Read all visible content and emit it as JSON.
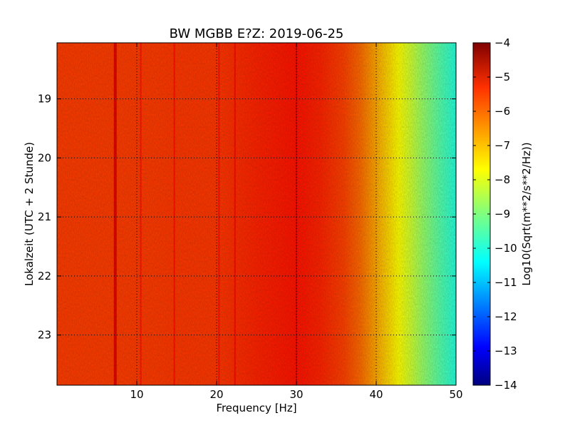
{
  "chart_data": {
    "type": "heatmap",
    "title": "BW MGBB E?Z: 2019-06-25",
    "xlabel": "Frequency [Hz]",
    "ylabel": "Lokalzeit (UTC + 2 Stunde)",
    "xlim": [
      0,
      50
    ],
    "ylim": [
      18.05,
      23.85
    ],
    "y_inverted": true,
    "x_ticks": [
      10,
      20,
      30,
      40,
      50
    ],
    "x_tick_labels": [
      "10",
      "20",
      "30",
      "40",
      "50"
    ],
    "y_ticks": [
      19,
      20,
      21,
      22,
      23
    ],
    "y_tick_labels": [
      "19",
      "20",
      "21",
      "22",
      "23"
    ],
    "grid": true,
    "colormap": "jet",
    "colorbar": {
      "label": "Log10(Sqrt(m**2/s**2/Hz))",
      "range": [
        -14,
        -4
      ],
      "ticks": [
        -4,
        -5,
        -6,
        -7,
        -8,
        -9,
        -10,
        -11,
        -12,
        -13,
        -14
      ],
      "tick_labels": [
        "−4",
        "−5",
        "−6",
        "−7",
        "−8",
        "−9",
        "−10",
        "−11",
        "−12",
        "−13",
        "−14"
      ]
    },
    "spectrum_profile": {
      "frequency_hz": [
        0,
        5,
        10,
        15,
        20,
        25,
        30,
        33,
        36,
        38,
        40,
        42,
        44,
        46,
        48,
        50
      ],
      "level": [
        -5.85,
        -5.85,
        -5.85,
        -5.8,
        -5.8,
        -5.6,
        -5.45,
        -5.6,
        -5.9,
        -6.3,
        -6.9,
        -7.5,
        -8.1,
        -8.8,
        -9.4,
        -9.9
      ]
    },
    "spectral_lines_hz": [
      7.3,
      10.5,
      14.7,
      20.3,
      22.3,
      30.0
    ],
    "colors": {
      "jet": [
        "#00007f",
        "#0000ff",
        "#007fff",
        "#00ffff",
        "#7fff7f",
        "#ffff00",
        "#ff7f00",
        "#ff0000",
        "#7f0000"
      ]
    }
  }
}
